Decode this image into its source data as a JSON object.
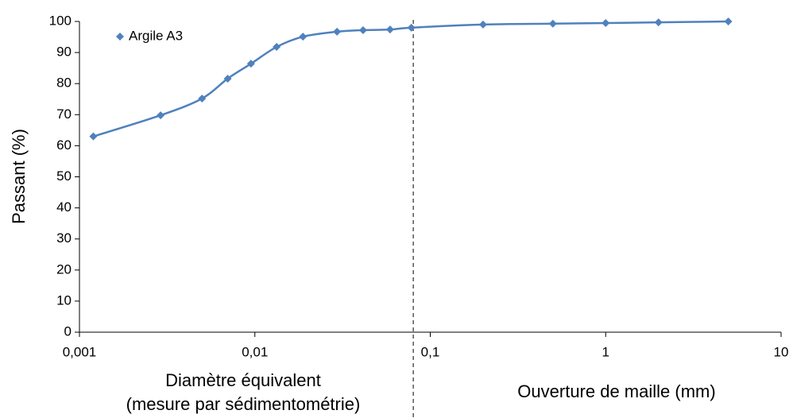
{
  "chart_data": {
    "type": "line",
    "x_log": true,
    "ylabel": "Passant (%)",
    "x": [
      0.0012,
      0.0029,
      0.005,
      0.007,
      0.0095,
      0.0133,
      0.0188,
      0.0294,
      0.0414,
      0.059,
      0.078,
      0.2,
      0.5,
      1,
      2,
      5
    ],
    "series": [
      {
        "name": "Argile A3",
        "color": "#4f81bd",
        "values": [
          63,
          69.8,
          75.2,
          81.6,
          86.4,
          91.8,
          95.1,
          96.7,
          97.2,
          97.4,
          98,
          99,
          99.3,
          99.5,
          99.7,
          100
        ]
      }
    ],
    "xlim": [
      0.001,
      10
    ],
    "xticks": [
      {
        "value": 0.001,
        "label": "0,001"
      },
      {
        "value": 0.01,
        "label": "0,01"
      },
      {
        "value": 0.1,
        "label": "0,1"
      },
      1,
      10
    ],
    "ylim": [
      0,
      100
    ],
    "yticks": [
      0,
      10,
      20,
      30,
      40,
      50,
      60,
      70,
      80,
      90,
      100
    ],
    "divider_x": 0.08,
    "legend": "top-left",
    "annotations": [
      "Diamètre équivalent",
      "(mesure par sédimentométrie)",
      "Ouverture de maille (mm)"
    ]
  }
}
